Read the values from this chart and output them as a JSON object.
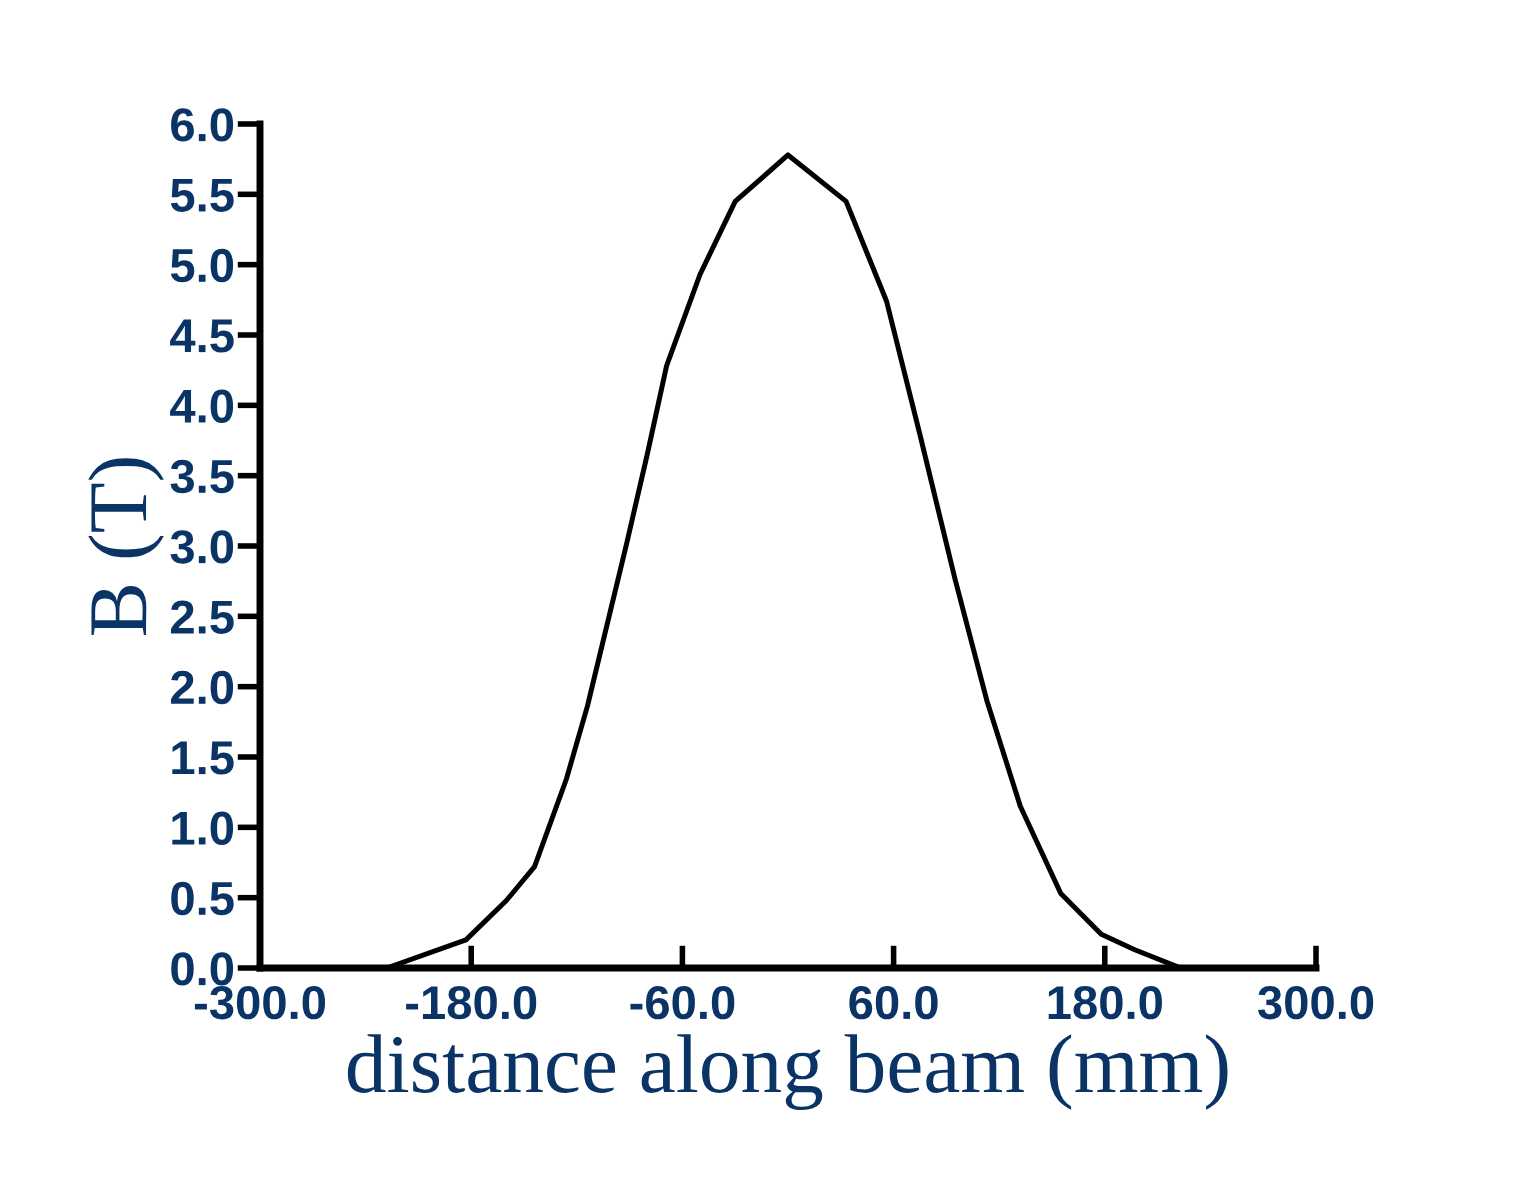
{
  "chart_data": {
    "type": "line",
    "xlabel": "distance along beam (mm)",
    "ylabel": "B (T)",
    "x": [
      -228,
      -183,
      -160,
      -144,
      -126,
      -114,
      -103,
      -92,
      -80,
      -69,
      -50,
      -30,
      0,
      33,
      56,
      75,
      95,
      113,
      132,
      155,
      178,
      197,
      223
    ],
    "series": [
      {
        "color": "#000000",
        "values": [
          0,
          0.2,
          0.48,
          0.72,
          1.34,
          1.86,
          2.43,
          3.0,
          3.65,
          4.28,
          4.93,
          5.45,
          5.78,
          5.45,
          4.74,
          3.79,
          2.76,
          1.9,
          1.15,
          0.53,
          0.24,
          0.13,
          0
        ]
      }
    ],
    "xlim": [
      -300,
      300
    ],
    "ylim": [
      0,
      6
    ],
    "xticks": [
      {
        "value": -300,
        "label": "-300.0"
      },
      {
        "value": -180,
        "label": "-180.0"
      },
      {
        "value": -60,
        "label": "-60.0"
      },
      {
        "value": 60,
        "label": "60.0"
      },
      {
        "value": 180,
        "label": "180.0"
      },
      {
        "value": 300,
        "label": "300.0"
      }
    ],
    "yticks": [
      {
        "value": 0,
        "label": "0.0"
      },
      {
        "value": 0.5,
        "label": "0.5"
      },
      {
        "value": 1,
        "label": "1.0"
      },
      {
        "value": 1.5,
        "label": "1.5"
      },
      {
        "value": 2,
        "label": "2.0"
      },
      {
        "value": 2.5,
        "label": "2.5"
      },
      {
        "value": 3,
        "label": "3.0"
      },
      {
        "value": 3.5,
        "label": "3.5"
      },
      {
        "value": 4,
        "label": "4.0"
      },
      {
        "value": 4.5,
        "label": "4.5"
      },
      {
        "value": 5,
        "label": "5.0"
      },
      {
        "value": 5.5,
        "label": "5.5"
      },
      {
        "value": 6,
        "label": "6.0"
      }
    ],
    "grid": false,
    "legend": false,
    "marker": "none",
    "line_style": "solid"
  }
}
